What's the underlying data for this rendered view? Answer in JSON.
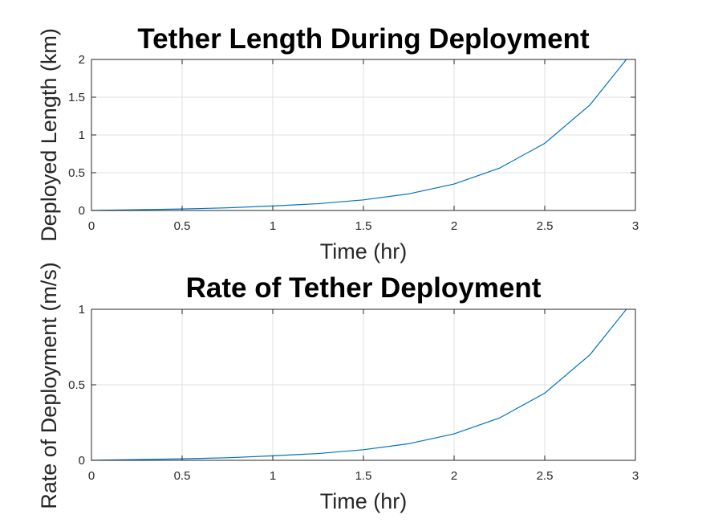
{
  "chart_data": [
    {
      "type": "line",
      "title": "Tether Length During Deployment",
      "xlabel": "Time (hr)",
      "ylabel": "Deployed Length (km)",
      "xlim": [
        0,
        3
      ],
      "ylim": [
        0,
        2
      ],
      "xticks": [
        0,
        0.5,
        1,
        1.5,
        2,
        2.5,
        3
      ],
      "xtick_labels": [
        "0",
        "0.5",
        "1",
        "1.5",
        "2",
        "2.5",
        "3"
      ],
      "yticks": [
        0,
        0.5,
        1,
        1.5,
        2
      ],
      "ytick_labels": [
        "0",
        "0.5",
        "1",
        "1.5",
        "2"
      ],
      "grid": true,
      "color": "#0072BD",
      "series": [
        {
          "x": [
            0,
            0.25,
            0.5,
            0.75,
            1,
            1.25,
            1.5,
            1.75,
            2,
            2.25,
            2.5,
            2.75,
            2.95
          ],
          "values": [
            0,
            0.01,
            0.02,
            0.035,
            0.06,
            0.09,
            0.14,
            0.22,
            0.35,
            0.56,
            0.89,
            1.4,
            2.0
          ]
        }
      ]
    },
    {
      "type": "line",
      "title": "Rate of Tether Deployment",
      "xlabel": "Time (hr)",
      "ylabel": "Rate of Deployment (m/s)",
      "xlim": [
        0,
        3
      ],
      "ylim": [
        0,
        1
      ],
      "xticks": [
        0,
        0.5,
        1,
        1.5,
        2,
        2.5,
        3
      ],
      "xtick_labels": [
        "0",
        "0.5",
        "1",
        "1.5",
        "2",
        "2.5",
        "3"
      ],
      "yticks": [
        0,
        0.5,
        1
      ],
      "ytick_labels": [
        "0",
        "0.5",
        "1"
      ],
      "grid": true,
      "color": "#0072BD",
      "series": [
        {
          "x": [
            0,
            0.25,
            0.5,
            0.75,
            1,
            1.25,
            1.5,
            1.75,
            2,
            2.25,
            2.5,
            2.75,
            2.95
          ],
          "values": [
            0,
            0.005,
            0.01,
            0.017,
            0.03,
            0.045,
            0.07,
            0.11,
            0.175,
            0.28,
            0.445,
            0.7,
            1.0
          ]
        }
      ]
    }
  ]
}
